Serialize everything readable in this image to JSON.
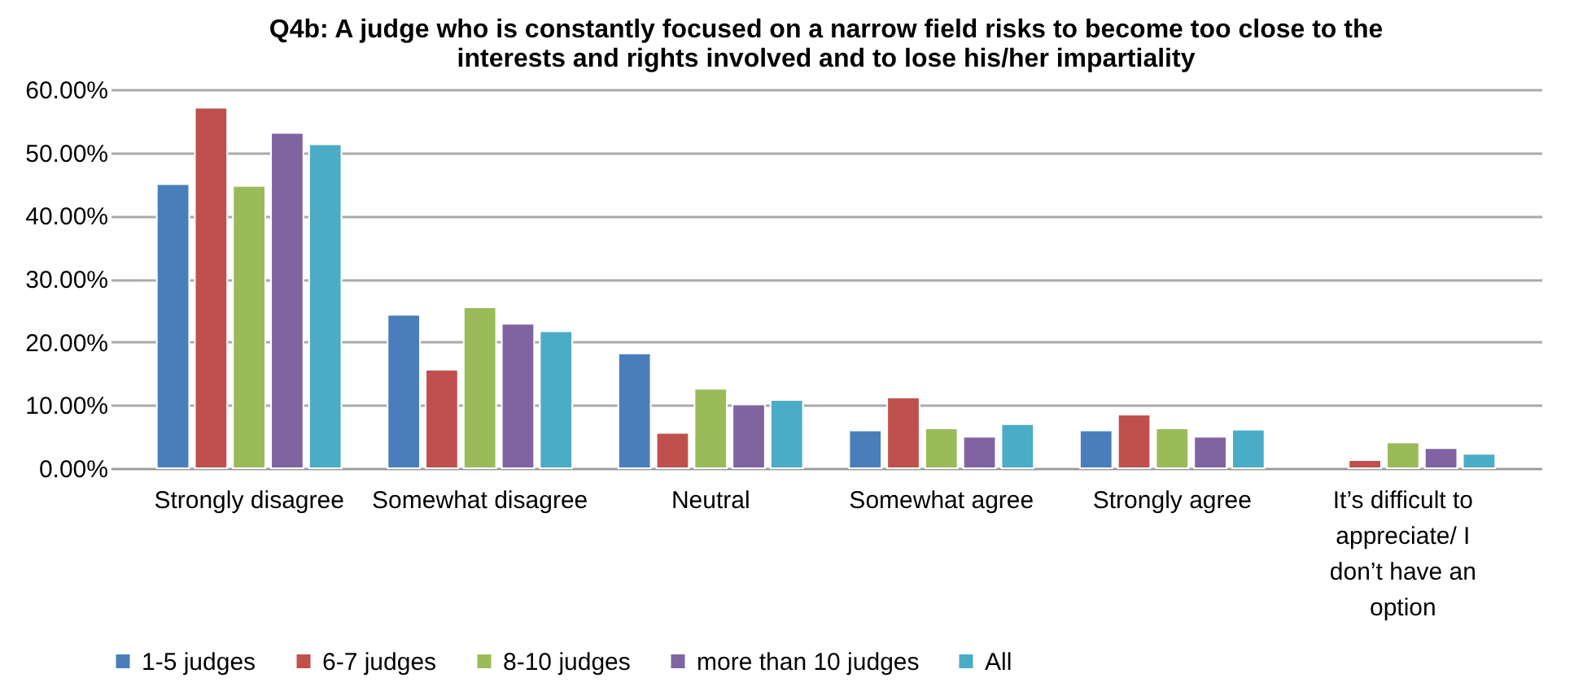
{
  "chart_data": {
    "type": "bar",
    "title": "Q4b: A judge who is constantly focused on a narrow field risks to become too close to the interests and rights involved and to lose his/her impartiality",
    "categories": [
      "Strongly disagree",
      "Somewhat disagree",
      "Neutral",
      "Somewhat agree",
      "Strongly agree",
      "It’s difficult to appreciate/ I don’t have an option"
    ],
    "series": [
      {
        "name": "1-5 judges",
        "color": "#4a7ebb",
        "values": [
          45.0,
          24.3,
          18.2,
          6.0,
          6.0,
          null
        ]
      },
      {
        "name": "6-7 judges",
        "color": "#c0504d",
        "values": [
          57.1,
          15.6,
          5.6,
          11.2,
          8.5,
          1.3
        ]
      },
      {
        "name": "8-10 judges",
        "color": "#9bbb59",
        "values": [
          44.7,
          25.5,
          12.6,
          6.3,
          6.3,
          4.1
        ]
      },
      {
        "name": "more than 10 judges",
        "color": "#8064a2",
        "values": [
          53.1,
          22.9,
          10.1,
          5.0,
          5.0,
          3.2
        ]
      },
      {
        "name": "All",
        "color": "#4bacc6",
        "values": [
          51.3,
          21.7,
          10.8,
          7.0,
          6.1,
          2.3
        ]
      }
    ],
    "ylim": [
      0,
      60
    ],
    "yticks": [
      {
        "value": 0,
        "label": "0.00%"
      },
      {
        "value": 10,
        "label": "10.00%"
      },
      {
        "value": 20,
        "label": "20.00%"
      },
      {
        "value": 30,
        "label": "30.00%"
      },
      {
        "value": 40,
        "label": "40.00%"
      },
      {
        "value": 50,
        "label": "50.00%"
      },
      {
        "value": 60,
        "label": "60.00%"
      }
    ],
    "grid": "y",
    "legend": "bottom"
  }
}
